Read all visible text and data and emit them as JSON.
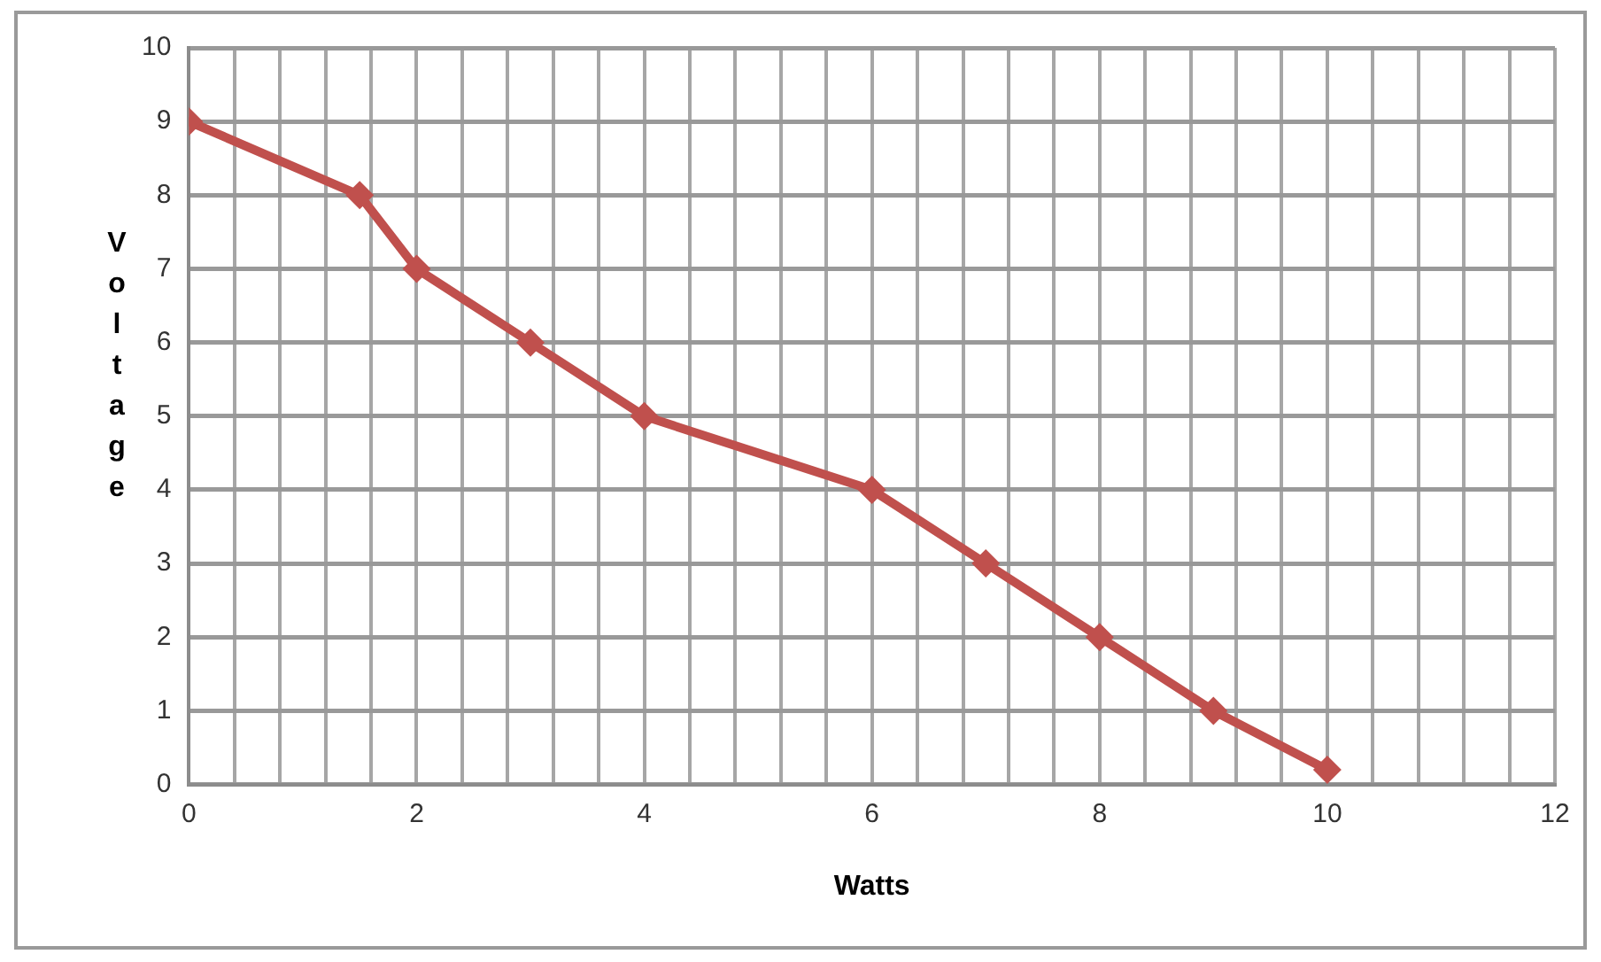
{
  "chart_data": {
    "type": "line",
    "xlabel": "Watts",
    "ylabel": "Voltage",
    "x": [
      0,
      1.5,
      2,
      3,
      4,
      6,
      7,
      8,
      9,
      10
    ],
    "series": [
      {
        "color": "#c0504d",
        "values": [
          9,
          8,
          7,
          6,
          5,
          4,
          3,
          2,
          1,
          0.2
        ]
      }
    ],
    "xlim": [
      0,
      12
    ],
    "xticks": [
      0,
      {
        "value": 0.4,
        "label": null
      },
      {
        "value": 0.8,
        "label": null
      },
      {
        "value": 1.2,
        "label": null
      },
      {
        "value": 1.6,
        "label": null
      },
      2,
      {
        "value": 2.4,
        "label": null
      },
      {
        "value": 2.8,
        "label": null
      },
      {
        "value": 3.2,
        "label": null
      },
      {
        "value": 3.6,
        "label": null
      },
      4,
      {
        "value": 4.4,
        "label": null
      },
      {
        "value": 4.8,
        "label": null
      },
      {
        "value": 5.2,
        "label": null
      },
      {
        "value": 5.6,
        "label": null
      },
      6,
      {
        "value": 6.4,
        "label": null
      },
      {
        "value": 6.8,
        "label": null
      },
      {
        "value": 7.2,
        "label": null
      },
      {
        "value": 7.6,
        "label": null
      },
      8,
      {
        "value": 8.4,
        "label": null
      },
      {
        "value": 8.8,
        "label": null
      },
      {
        "value": 9.2,
        "label": null
      },
      {
        "value": 9.6,
        "label": null
      },
      10,
      {
        "value": 10.4,
        "label": null
      },
      {
        "value": 10.8,
        "label": null
      },
      {
        "value": 11.2,
        "label": null
      },
      {
        "value": 11.6,
        "label": null
      },
      12
    ],
    "ylim": [
      0,
      10
    ],
    "yticks": [
      0,
      1,
      2,
      3,
      4,
      5,
      6,
      7,
      8,
      9,
      10
    ],
    "grid": true,
    "legend": false,
    "marker": "diamond",
    "line_style": "solid"
  }
}
